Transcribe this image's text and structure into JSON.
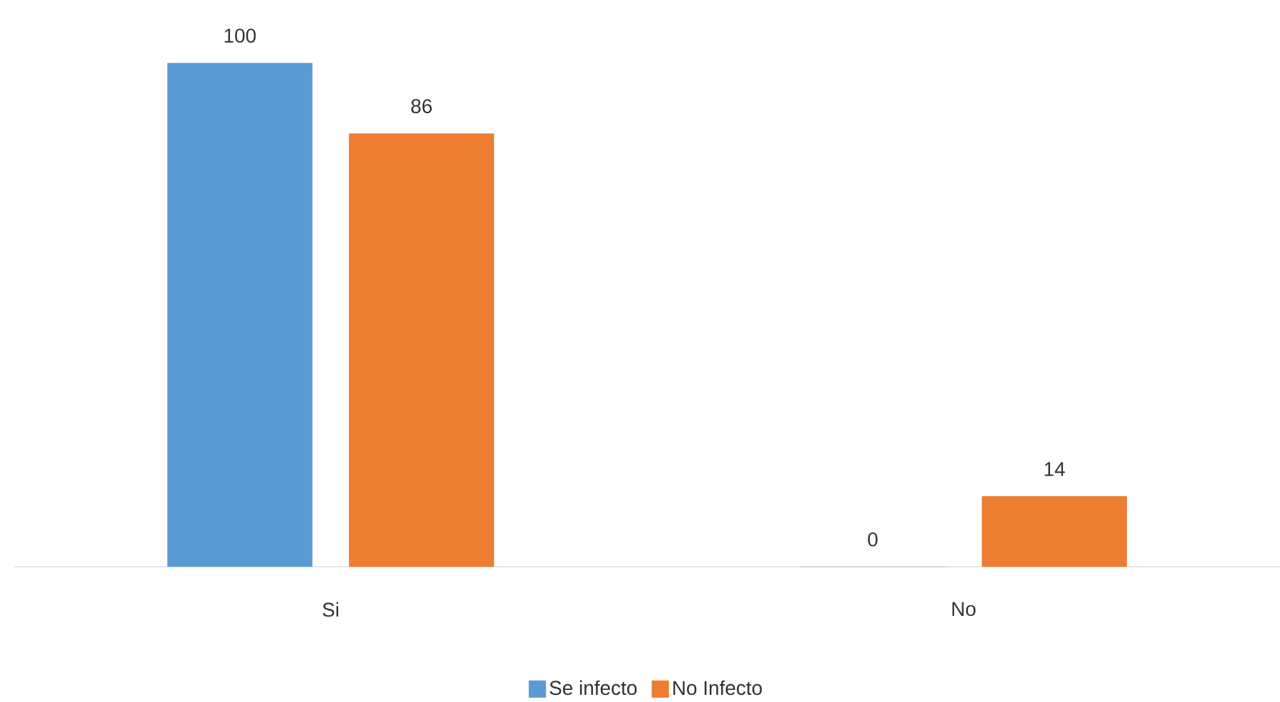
{
  "chart_data": {
    "type": "bar",
    "categories": [
      "Si",
      "No"
    ],
    "series": [
      {
        "name": "Se infecto",
        "color": "#5b9bd5",
        "values": [
          100,
          0
        ]
      },
      {
        "name": "No Infecto",
        "color": "#ed7d31",
        "values": [
          86,
          14
        ]
      }
    ],
    "data_labels": true,
    "legend": "bottom"
  }
}
